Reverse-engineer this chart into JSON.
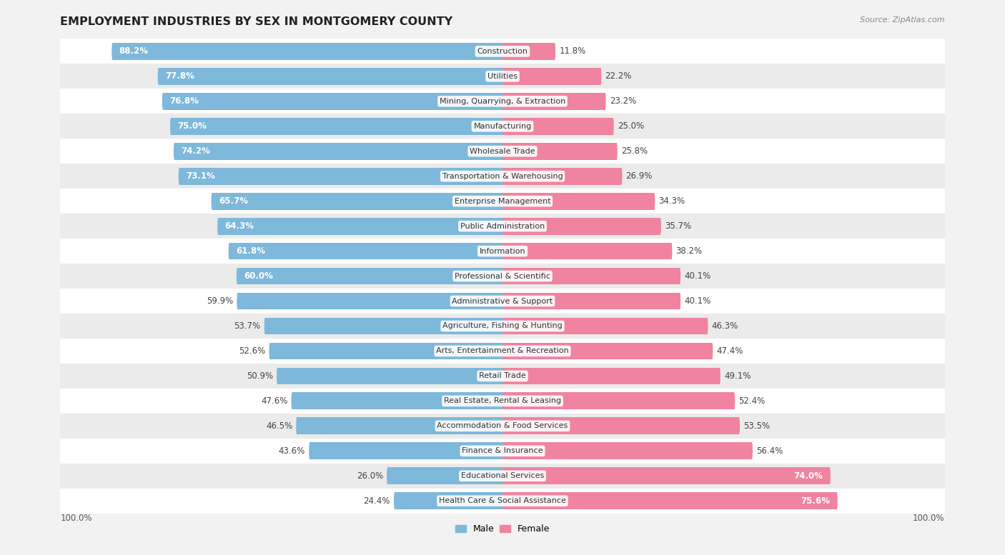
{
  "title": "EMPLOYMENT INDUSTRIES BY SEX IN MONTGOMERY COUNTY",
  "source": "Source: ZipAtlas.com",
  "industries": [
    "Construction",
    "Utilities",
    "Mining, Quarrying, & Extraction",
    "Manufacturing",
    "Wholesale Trade",
    "Transportation & Warehousing",
    "Enterprise Management",
    "Public Administration",
    "Information",
    "Professional & Scientific",
    "Administrative & Support",
    "Agriculture, Fishing & Hunting",
    "Arts, Entertainment & Recreation",
    "Retail Trade",
    "Real Estate, Rental & Leasing",
    "Accommodation & Food Services",
    "Finance & Insurance",
    "Educational Services",
    "Health Care & Social Assistance"
  ],
  "male_pct": [
    88.2,
    77.8,
    76.8,
    75.0,
    74.2,
    73.1,
    65.7,
    64.3,
    61.8,
    60.0,
    59.9,
    53.7,
    52.6,
    50.9,
    47.6,
    46.5,
    43.6,
    26.0,
    24.4
  ],
  "female_pct": [
    11.8,
    22.2,
    23.2,
    25.0,
    25.8,
    26.9,
    34.3,
    35.7,
    38.2,
    40.1,
    40.1,
    46.3,
    47.4,
    49.1,
    52.4,
    53.5,
    56.4,
    74.0,
    75.6
  ],
  "male_color": "#7eb8da",
  "female_color": "#f083a0",
  "bg_color": "#f2f2f2",
  "row_bg_even": "#ffffff",
  "row_bg_odd": "#ebebeb",
  "title_fontsize": 11.5,
  "source_fontsize": 8,
  "bar_label_fontsize": 8.5,
  "industry_fontsize": 8,
  "male_threshold": 60,
  "female_threshold": 60
}
